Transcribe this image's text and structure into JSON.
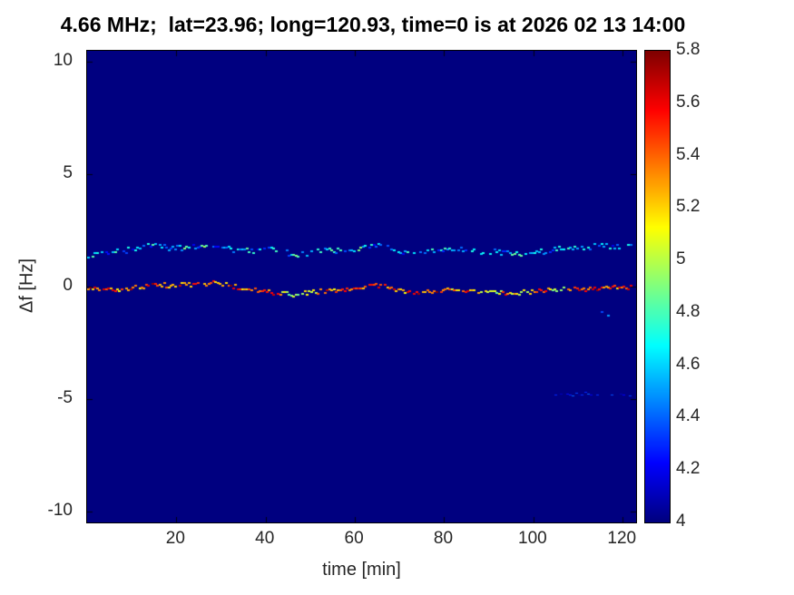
{
  "chart_data": {
    "type": "heatmap",
    "title": "4.66 MHz;  lat=23.96; long=120.93, time=0 is at 2026 02 13 14:00",
    "xlabel": "time [min]",
    "ylabel": "Δf [Hz]",
    "xlim": [
      0,
      123
    ],
    "ylim": [
      -10.5,
      10.5
    ],
    "xticks": [
      20,
      40,
      60,
      80,
      100,
      120
    ],
    "yticks": [
      10,
      5,
      0,
      -5,
      -10
    ],
    "colormap": "jet",
    "grid": false,
    "background_value": 4,
    "colorbar": {
      "min": 4,
      "max": 5.8,
      "ticks": [
        4,
        4.2,
        4.4,
        4.6,
        4.8,
        5,
        5.2,
        5.4,
        5.6,
        5.8
      ],
      "position": "right"
    },
    "x": [
      0,
      2,
      4,
      6,
      8,
      10,
      12,
      14,
      16,
      18,
      20,
      22,
      24,
      26,
      28,
      30,
      32,
      34,
      36,
      38,
      40,
      42,
      44,
      46,
      48,
      50,
      52,
      54,
      56,
      58,
      60,
      62,
      64,
      66,
      68,
      70,
      72,
      74,
      76,
      78,
      80,
      82,
      84,
      86,
      88,
      90,
      92,
      94,
      96,
      98,
      100,
      102,
      104,
      106,
      108,
      110,
      112,
      114,
      116,
      118,
      120,
      122
    ],
    "series": [
      {
        "name": "upper-doppler-trace",
        "y": [
          1.4,
          1.42,
          1.45,
          1.5,
          1.6,
          1.7,
          1.8,
          1.85,
          1.8,
          1.72,
          1.7,
          1.72,
          1.75,
          1.78,
          1.8,
          1.72,
          1.65,
          1.6,
          1.6,
          1.63,
          1.65,
          1.58,
          1.5,
          1.46,
          1.45,
          1.5,
          1.55,
          1.58,
          1.6,
          1.63,
          1.65,
          1.72,
          1.8,
          1.85,
          1.7,
          1.56,
          1.55,
          1.55,
          1.58,
          1.6,
          1.62,
          1.65,
          1.62,
          1.6,
          1.56,
          1.54,
          1.52,
          1.5,
          1.47,
          1.45,
          1.5,
          1.56,
          1.6,
          1.66,
          1.7,
          1.74,
          1.76,
          1.78,
          1.8,
          1.8,
          1.8,
          1.8
        ],
        "v": [
          4.55,
          4.65,
          4.45,
          4.7,
          4.5,
          4.4,
          4.62,
          4.48,
          4.72,
          4.44,
          4.58,
          4.66,
          4.42,
          4.68,
          4.52,
          4.46,
          4.64,
          4.5,
          4.74,
          4.4,
          4.56,
          4.62,
          4.44,
          4.7,
          4.48,
          4.42,
          4.66,
          4.52,
          4.7,
          4.46,
          4.6,
          4.64,
          4.4,
          4.68,
          4.5,
          4.44,
          4.62,
          4.54,
          4.72,
          4.42,
          4.58,
          4.6,
          4.46,
          4.66,
          4.52,
          4.4,
          4.64,
          4.48,
          4.7,
          4.44,
          4.56,
          4.68,
          4.42,
          4.72,
          4.5,
          4.46,
          4.6,
          4.52,
          4.68,
          4.4,
          4.58,
          4.64
        ]
      },
      {
        "name": "main-doppler-trace",
        "y": [
          -0.1,
          -0.12,
          -0.15,
          -0.13,
          -0.1,
          -0.05,
          0.0,
          0.03,
          0.05,
          0.05,
          0.06,
          0.08,
          0.1,
          0.13,
          0.15,
          0.1,
          0.02,
          -0.05,
          -0.12,
          -0.18,
          -0.25,
          -0.3,
          -0.33,
          -0.35,
          -0.3,
          -0.25,
          -0.22,
          -0.2,
          -0.17,
          -0.14,
          -0.08,
          -0.03,
          0.02,
          0.05,
          -0.05,
          -0.15,
          -0.22,
          -0.25,
          -0.22,
          -0.2,
          -0.17,
          -0.15,
          -0.17,
          -0.2,
          -0.23,
          -0.25,
          -0.28,
          -0.3,
          -0.28,
          -0.25,
          -0.22,
          -0.2,
          -0.17,
          -0.14,
          -0.12,
          -0.1,
          -0.1,
          -0.08,
          -0.06,
          -0.04,
          -0.02,
          0.0
        ],
        "v": [
          5.5,
          5.35,
          5.6,
          5.3,
          5.45,
          5.55,
          5.25,
          5.6,
          5.4,
          5.2,
          5.5,
          5.3,
          5.58,
          5.35,
          5.5,
          5.22,
          5.6,
          5.4,
          5.28,
          5.52,
          5.35,
          5.55,
          5.05,
          4.95,
          5.1,
          5.0,
          5.3,
          5.5,
          5.25,
          5.55,
          5.4,
          5.2,
          5.5,
          5.32,
          5.58,
          5.28,
          5.45,
          5.55,
          5.3,
          5.6,
          5.38,
          5.22,
          5.52,
          5.3,
          5.05,
          4.92,
          5.15,
          5.45,
          5.0,
          4.9,
          5.2,
          5.48,
          5.1,
          4.95,
          5.3,
          5.5,
          5.35,
          5.55,
          5.4,
          5.3,
          5.5,
          5.45
        ]
      },
      {
        "name": "faint-lower-trace",
        "x": [
          104,
          106,
          108,
          110,
          112,
          114,
          116,
          118,
          120,
          122
        ],
        "y": [
          -4.8,
          -4.8,
          -4.82,
          -4.78,
          -4.8,
          -4.8,
          -4.82,
          -4.78,
          -4.8,
          -4.8
        ],
        "v": [
          4.25,
          4.18,
          4.3,
          4.2,
          4.35,
          4.22,
          4.28,
          4.32,
          4.2,
          4.26
        ]
      }
    ],
    "spots": [
      {
        "x": 116.5,
        "y": -1.3,
        "v": 4.5
      },
      {
        "x": 115.0,
        "y": -1.15,
        "v": 4.35
      }
    ]
  }
}
